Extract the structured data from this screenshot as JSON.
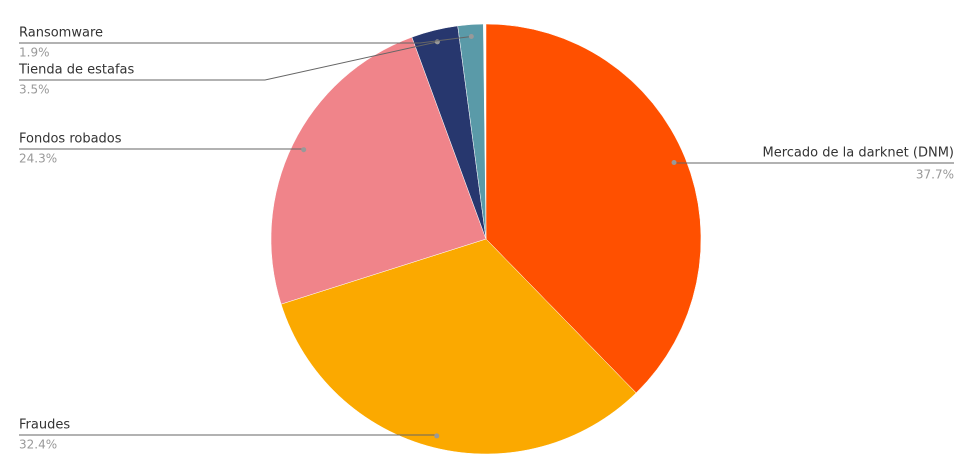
{
  "chart_data": {
    "type": "pie",
    "categories": [
      "Mercado de la darknet (DNM)",
      "Fraudes",
      "Fondos robados",
      "Tienda de estafas",
      "Ransomware"
    ],
    "values": [
      37.7,
      32.4,
      24.3,
      3.5,
      1.9
    ],
    "value_labels": [
      "37.7%",
      "32.4%",
      "24.3%",
      "3.5%",
      "1.9%"
    ],
    "colors": [
      "#ff5000",
      "#fba900",
      "#f0848a",
      "#27376e",
      "#5a9aa8"
    ]
  }
}
